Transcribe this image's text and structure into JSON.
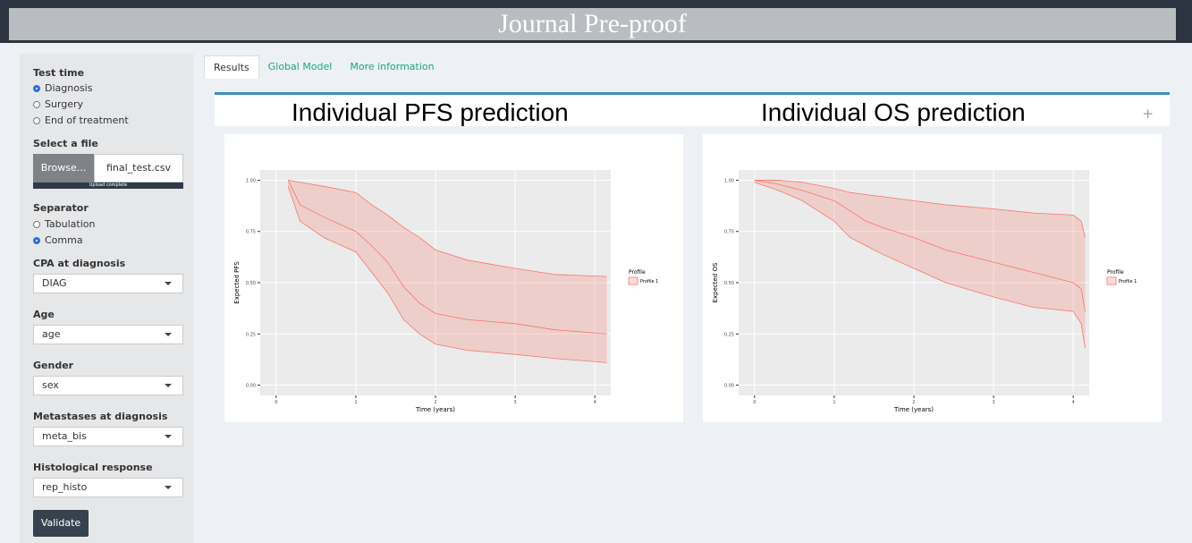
{
  "header": {
    "watermark": "Journal Pre-proof"
  },
  "sidebar": {
    "test_time": {
      "label": "Test time",
      "options": [
        "Diagnosis",
        "Surgery",
        "End of treatment"
      ],
      "selected": 0
    },
    "file": {
      "label": "Select a file",
      "button": "Browse...",
      "filename": "final_test.csv",
      "progress": "Upload complete"
    },
    "separator": {
      "label": "Separator",
      "options": [
        "Tabulation",
        "Comma"
      ],
      "selected": 1
    },
    "selects": [
      {
        "label": "CPA at diagnosis",
        "value": "DIAG"
      },
      {
        "label": "Age",
        "value": "age"
      },
      {
        "label": "Gender",
        "value": "sex"
      },
      {
        "label": "Metastases at diagnosis",
        "value": "meta_bis"
      },
      {
        "label": "Histological response",
        "value": "rep_histo"
      }
    ],
    "button": "Validate"
  },
  "tabs": {
    "items": [
      "Results",
      "Global Model",
      "More information"
    ],
    "active": 0
  },
  "collapse_icon": "+",
  "chart_data": [
    {
      "type": "ribbon",
      "title": "Individual PFS prediction",
      "x_label": "Time (years)",
      "y_label": "Expected PFS",
      "legend_title": "Profile",
      "legend_position": "right",
      "grid": true,
      "xlim": [
        -0.2,
        4.2
      ],
      "ylim": [
        -0.05,
        1.05
      ],
      "xticks": [
        0,
        1,
        2,
        3,
        4
      ],
      "yticks": [
        {
          "value": 0,
          "label": "0.00"
        },
        {
          "value": 0.25,
          "label": "0.25"
        },
        {
          "value": 0.5,
          "label": "0.50"
        },
        {
          "value": 0.75,
          "label": "0.75"
        },
        {
          "value": 1,
          "label": "1.00"
        }
      ],
      "series": [
        {
          "name": "Profile 1",
          "color": "#f8766d",
          "x": [
            0.15,
            0.3,
            0.6,
            1.0,
            1.2,
            1.4,
            1.6,
            1.8,
            2.0,
            2.4,
            3.0,
            3.5,
            4.15
          ],
          "values": [
            1.0,
            0.88,
            0.82,
            0.75,
            0.68,
            0.6,
            0.48,
            0.4,
            0.35,
            0.32,
            0.3,
            0.27,
            0.25
          ],
          "lower": [
            0.97,
            0.8,
            0.72,
            0.65,
            0.55,
            0.45,
            0.32,
            0.25,
            0.2,
            0.17,
            0.15,
            0.13,
            0.11
          ],
          "upper": [
            1.0,
            0.99,
            0.97,
            0.94,
            0.88,
            0.83,
            0.77,
            0.72,
            0.66,
            0.61,
            0.57,
            0.54,
            0.53
          ]
        }
      ]
    },
    {
      "type": "ribbon",
      "title": "Individual OS prediction",
      "x_label": "Time (years)",
      "y_label": "Expected OS",
      "legend_title": "Profile",
      "legend_position": "right",
      "grid": true,
      "xlim": [
        -0.2,
        4.2
      ],
      "ylim": [
        -0.05,
        1.05
      ],
      "xticks": [
        0,
        1,
        2,
        3,
        4
      ],
      "yticks": [
        {
          "value": 0,
          "label": "0.00"
        },
        {
          "value": 0.25,
          "label": "0.25"
        },
        {
          "value": 0.5,
          "label": "0.50"
        },
        {
          "value": 0.75,
          "label": "0.75"
        },
        {
          "value": 1,
          "label": "1.00"
        }
      ],
      "series": [
        {
          "name": "Profile 1",
          "color": "#f8766d",
          "x": [
            0.0,
            0.3,
            0.6,
            1.0,
            1.2,
            1.4,
            1.6,
            2.0,
            2.4,
            3.0,
            3.5,
            4.0,
            4.1,
            4.15
          ],
          "values": [
            1.0,
            0.98,
            0.95,
            0.9,
            0.85,
            0.8,
            0.77,
            0.72,
            0.66,
            0.6,
            0.55,
            0.5,
            0.47,
            0.36
          ],
          "lower": [
            0.99,
            0.95,
            0.9,
            0.8,
            0.72,
            0.68,
            0.64,
            0.57,
            0.5,
            0.43,
            0.38,
            0.36,
            0.3,
            0.18
          ],
          "upper": [
            1.0,
            1.0,
            0.99,
            0.96,
            0.94,
            0.93,
            0.92,
            0.9,
            0.88,
            0.86,
            0.84,
            0.83,
            0.8,
            0.72
          ]
        }
      ]
    }
  ]
}
